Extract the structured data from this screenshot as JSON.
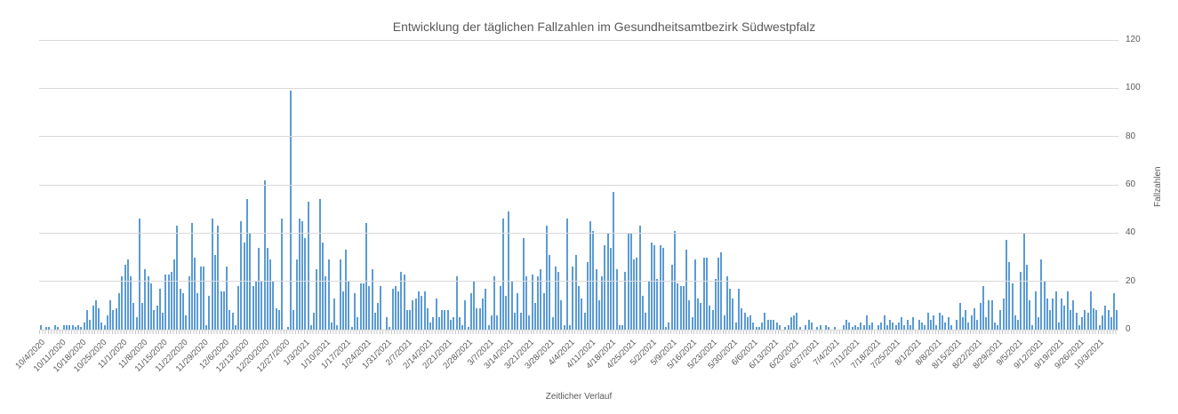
{
  "title": "Entwicklung der täglichen Fallzahlen im Gesundheitsamtbezirk Südwestpfalz",
  "chart_data": {
    "type": "bar",
    "title": "Entwicklung der täglichen Fallzahlen im Gesundheitsamtbezirk Südwestpfalz",
    "xlabel": "Zeitlicher Verlauf",
    "ylabel": "Fallzahlen",
    "ylim": [
      0,
      120
    ],
    "yticks": [
      0,
      20,
      40,
      60,
      80,
      100,
      120
    ],
    "grid": "horizontal",
    "legend": "none",
    "bar_color": "#5b9bd5",
    "gridline_color": "#d9d9d9",
    "text_color": "#595959",
    "frequency": "daily",
    "start_date": "10/4/2020",
    "end_date": "10/9/2021",
    "x_tick_labels": [
      "10/4/2020",
      "10/11/2020",
      "10/18/2020",
      "10/25/2020",
      "11/1/2020",
      "11/8/2020",
      "11/15/2020",
      "11/22/2020",
      "11/29/2020",
      "12/6/2020",
      "12/13/2020",
      "12/20/2020",
      "12/27/2020",
      "1/3/2021",
      "1/10/2021",
      "1/17/2021",
      "1/24/2021",
      "1/31/2021",
      "2/7/2021",
      "2/14/2021",
      "2/21/2021",
      "2/28/2021",
      "3/7/2021",
      "3/14/2021",
      "3/21/2021",
      "3/28/2021",
      "4/4/2021",
      "4/11/2021",
      "4/18/2021",
      "4/25/2021",
      "5/2/2021",
      "5/9/2021",
      "5/16/2021",
      "5/23/2021",
      "5/30/2021",
      "6/6/2021",
      "6/13/2021",
      "6/20/2021",
      "6/27/2021",
      "7/4/2021",
      "7/11/2021",
      "7/18/2021",
      "7/25/2021",
      "8/1/2021",
      "8/8/2021",
      "8/15/2021",
      "8/22/2021",
      "8/29/2021",
      "9/5/2021",
      "9/12/2021",
      "9/19/2021",
      "9/26/2021",
      "10/3/2021"
    ],
    "values": [
      2,
      0,
      1,
      1,
      0,
      2,
      1,
      0,
      2,
      2,
      2,
      2,
      1,
      2,
      1,
      3,
      8,
      4,
      10,
      12,
      9,
      3,
      2,
      6,
      12,
      8,
      9,
      15,
      22,
      27,
      29,
      22,
      11,
      5,
      46,
      11,
      25,
      22,
      19,
      8,
      10,
      17,
      7,
      23,
      23,
      24,
      29,
      43,
      17,
      15,
      6,
      22,
      44,
      30,
      15,
      26,
      26,
      2,
      14,
      46,
      31,
      43,
      16,
      16,
      26,
      8,
      7,
      2,
      18,
      45,
      36,
      54,
      40,
      18,
      20,
      34,
      20,
      62,
      34,
      29,
      20,
      9,
      8,
      46,
      0,
      1,
      99,
      8,
      29,
      46,
      45,
      38,
      53,
      2,
      7,
      25,
      54,
      36,
      22,
      29,
      3,
      13,
      2,
      29,
      16,
      33,
      20,
      1,
      15,
      5,
      19,
      19,
      44,
      18,
      25,
      7,
      11,
      18,
      0,
      5,
      1,
      17,
      18,
      16,
      24,
      23,
      8,
      8,
      12,
      13,
      16,
      14,
      16,
      9,
      3,
      5,
      13,
      5,
      8,
      8,
      8,
      4,
      5,
      22,
      5,
      2,
      12,
      1,
      15,
      20,
      9,
      9,
      13,
      17,
      2,
      6,
      22,
      6,
      18,
      46,
      14,
      49,
      20,
      7,
      15,
      7,
      38,
      22,
      6,
      23,
      11,
      22,
      25,
      15,
      43,
      31,
      5,
      26,
      24,
      12,
      2,
      46,
      2,
      26,
      31,
      18,
      13,
      7,
      28,
      45,
      41,
      25,
      12,
      22,
      35,
      40,
      34,
      57,
      25,
      2,
      2,
      24,
      40,
      40,
      29,
      30,
      43,
      14,
      7,
      20,
      36,
      35,
      21,
      35,
      34,
      1,
      3,
      27,
      41,
      19,
      18,
      18,
      33,
      12,
      5,
      29,
      13,
      11,
      30,
      30,
      10,
      8,
      21,
      30,
      32,
      6,
      22,
      17,
      13,
      3,
      17,
      9,
      7,
      5,
      6,
      3,
      1,
      1,
      3,
      7,
      4,
      4,
      4,
      3,
      2,
      0,
      1,
      2,
      5,
      6,
      7,
      1,
      0,
      2,
      4,
      3,
      0,
      1,
      2,
      0,
      2,
      1,
      0,
      1,
      0,
      0,
      2,
      4,
      3,
      1,
      2,
      1,
      3,
      2,
      6,
      2,
      3,
      0,
      2,
      3,
      6,
      2,
      4,
      3,
      2,
      3,
      5,
      2,
      4,
      2,
      5,
      0,
      4,
      3,
      2,
      7,
      4,
      6,
      2,
      7,
      6,
      3,
      5,
      2,
      0,
      4,
      11,
      5,
      8,
      3,
      6,
      9,
      4,
      11,
      18,
      5,
      12,
      12,
      3,
      2,
      8,
      13,
      37,
      28,
      19,
      6,
      4,
      24,
      40,
      27,
      12,
      2,
      16,
      5,
      29,
      20,
      13,
      8,
      13,
      16,
      3,
      13,
      10,
      16,
      8,
      12,
      7,
      2,
      5,
      8,
      7,
      16,
      9,
      8,
      2,
      6,
      10,
      8,
      5,
      15,
      8
    ]
  }
}
